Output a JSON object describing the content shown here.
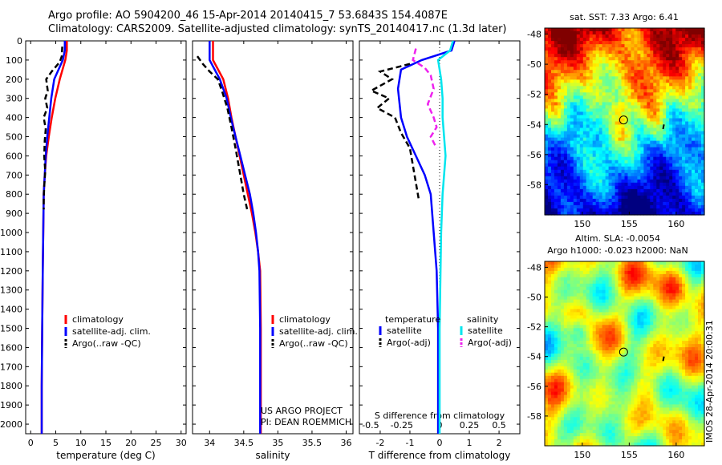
{
  "header": {
    "line1": "Argo profile: AO 5904200_46 15-Apr-2014 20140415_7 53.6843S 154.4087E",
    "line2": "Climatology: CARS2009. Satellite-adjusted climatology: synTS_20140417.nc (1.3d later)"
  },
  "colors": {
    "climatology": "#ff0000",
    "satellite": "#0000ff",
    "argo": "#000000",
    "sat_s": "#00e5ee",
    "argo_s": "#ee22ee"
  },
  "chart_data": [
    {
      "type": "line",
      "xlabel": "temperature (deg C)",
      "ylabel": "",
      "xlim": [
        -1,
        31
      ],
      "ylim": [
        2050,
        0
      ],
      "xticks": [
        0,
        5,
        10,
        15,
        20,
        25,
        30
      ],
      "yticks": [
        0,
        100,
        200,
        300,
        400,
        500,
        600,
        700,
        800,
        900,
        1000,
        1100,
        1200,
        1300,
        1400,
        1500,
        1600,
        1700,
        1800,
        1900,
        2000
      ],
      "legend": [
        "climatology",
        "satellite-adj. clim.",
        "Argo(..raw -QC)"
      ],
      "series": [
        {
          "name": "climatology",
          "color": "climatology",
          "dash": "",
          "x": [
            7.2,
            7.2,
            6.9,
            5.8,
            4.9,
            4.2,
            3.6,
            3.1,
            2.8,
            2.6,
            2.5,
            2.4,
            2.3,
            2.2,
            2.2
          ],
          "y": [
            0,
            50,
            100,
            200,
            300,
            400,
            500,
            600,
            700,
            800,
            1000,
            1200,
            1500,
            1800,
            2050
          ]
        },
        {
          "name": "satellite-adj. clim.",
          "color": "satellite",
          "dash": "",
          "x": [
            6.8,
            6.8,
            6.4,
            4.7,
            4.1,
            3.7,
            3.3,
            3.0,
            2.8,
            2.6,
            2.5,
            2.4,
            2.3,
            2.2,
            2.2
          ],
          "y": [
            0,
            50,
            100,
            200,
            300,
            400,
            500,
            600,
            700,
            800,
            1000,
            1200,
            1500,
            1800,
            2050
          ]
        },
        {
          "name": "Argo(..raw -QC)",
          "color": "argo",
          "dash": "7,4",
          "x": [
            6.3,
            6.2,
            5.8,
            4.2,
            3.1,
            3.4,
            2.9,
            3.3,
            2.6,
            3.0,
            2.8,
            2.7,
            2.9,
            2.7,
            2.6,
            2.6
          ],
          "y": [
            30,
            80,
            110,
            160,
            200,
            260,
            300,
            350,
            400,
            460,
            520,
            600,
            680,
            760,
            830,
            880
          ]
        }
      ]
    },
    {
      "type": "line",
      "xlabel": "salinity",
      "ylabel": "",
      "xlim": [
        33.75,
        36.1
      ],
      "ylim": [
        2050,
        0
      ],
      "xticks": [
        34,
        34.5,
        35,
        35.5,
        36
      ],
      "legend": [
        "climatology",
        "satellite-adj. clim.",
        "Argo(..raw -QC)"
      ],
      "series": [
        {
          "name": "climatology",
          "color": "climatology",
          "dash": "",
          "x": [
            34.05,
            34.05,
            34.05,
            34.2,
            34.27,
            34.32,
            34.38,
            34.44,
            34.5,
            34.56,
            34.62,
            34.67,
            34.71,
            34.74,
            34.75,
            34.75
          ],
          "y": [
            0,
            50,
            100,
            200,
            300,
            400,
            500,
            600,
            700,
            800,
            900,
            1000,
            1100,
            1200,
            1500,
            2050
          ]
        },
        {
          "name": "satellite-adj. clim.",
          "color": "satellite",
          "dash": "",
          "x": [
            34.0,
            34.0,
            34.0,
            34.15,
            34.25,
            34.31,
            34.38,
            34.45,
            34.52,
            34.59,
            34.64,
            34.68,
            34.71,
            34.73,
            34.74,
            34.74
          ],
          "y": [
            0,
            50,
            100,
            200,
            300,
            400,
            500,
            600,
            700,
            800,
            900,
            1000,
            1100,
            1200,
            1500,
            2050
          ]
        },
        {
          "name": "Argo(..raw -QC)",
          "color": "argo",
          "dash": "7,4",
          "x": [
            33.82,
            33.9,
            34.0,
            34.12,
            34.18,
            34.26,
            34.32,
            34.38,
            34.45,
            34.5,
            34.55
          ],
          "y": [
            80,
            120,
            160,
            200,
            260,
            350,
            450,
            560,
            700,
            800,
            880
          ]
        }
      ],
      "annotations": [
        "US ARGO PROJECT",
        "PI: DEAN ROEMMICH"
      ]
    },
    {
      "type": "line",
      "xlabel": "T difference from climatology",
      "xlabel2": "S difference from climatology",
      "xlim": [
        -2.7,
        2.7
      ],
      "ylim": [
        2050,
        0
      ],
      "xticks": [
        -2,
        -1,
        0,
        1,
        2
      ],
      "xticks2": [
        "-0.5",
        "-0.25",
        "0",
        "0.25",
        "0.5"
      ],
      "legend_t": {
        "title": "temperature",
        "items": [
          "satellite",
          "Argo(-adj)"
        ]
      },
      "legend_s": {
        "title": "salinity",
        "items": [
          "satellite",
          "Argo(-adj)"
        ]
      },
      "series": [
        {
          "name": "satellite",
          "color": "satellite",
          "dash": "",
          "x": [
            0.5,
            0.4,
            -0.6,
            -1.3,
            -1.4,
            -1.3,
            -1.1,
            -0.8,
            -0.5,
            -0.3,
            -0.2,
            -0.1,
            -0.05,
            -0.05
          ],
          "y": [
            0,
            50,
            100,
            150,
            250,
            400,
            500,
            600,
            700,
            800,
            1000,
            1200,
            1500,
            2050
          ]
        },
        {
          "name": "Argo(-adj)",
          "color": "argo",
          "dash": "7,4",
          "x": [
            -1.0,
            -2.0,
            -1.6,
            -2.3,
            -1.7,
            -2.1,
            -1.5,
            -1.3,
            -1.0,
            -0.7
          ],
          "y": [
            120,
            160,
            200,
            260,
            300,
            350,
            400,
            480,
            560,
            830
          ]
        },
        {
          "name": "satellite",
          "color": "sat_s",
          "dash": "",
          "x": [
            0.45,
            0.35,
            -0.05,
            0.05,
            0.1,
            0.1,
            0.2,
            0.1,
            0.05,
            0.0,
            0.0
          ],
          "y": [
            0,
            50,
            100,
            200,
            300,
            400,
            600,
            800,
            1000,
            1500,
            2050
          ]
        },
        {
          "name": "Argo(-adj)",
          "color": "argo_s",
          "dash": "7,4",
          "x": [
            -0.8,
            -0.9,
            -0.5,
            -0.3,
            -0.2,
            -0.4,
            -0.2,
            -0.1,
            -0.3,
            -0.1
          ],
          "y": [
            40,
            100,
            140,
            180,
            250,
            330,
            400,
            450,
            500,
            560
          ]
        }
      ]
    },
    {
      "type": "heatmap",
      "title": "sat. SST: 7.33 Argo: 6.41",
      "xticks": [
        "150",
        "155",
        "160"
      ],
      "yticks": [
        "-48",
        "-50",
        "-52",
        "-54",
        "-56",
        "-58"
      ],
      "xlim": [
        146,
        163
      ],
      "ylim": [
        -60,
        -47.6
      ],
      "marker": {
        "lon": 154.4,
        "lat": -53.7
      }
    },
    {
      "type": "heatmap",
      "title": "Altim. SLA: -0.0054",
      "subtitle": "Argo h1000: -0.023 h2000: NaN",
      "xticks": [
        "150",
        "155",
        "160"
      ],
      "yticks": [
        "-48",
        "-50",
        "-52",
        "-54",
        "-56",
        "-58"
      ],
      "xlim": [
        146,
        163
      ],
      "ylim": [
        -60,
        -47.6
      ],
      "marker": {
        "lon": 154.4,
        "lat": -53.7
      },
      "sidebar_text": "IMOS 28-Apr-2014 20:00:31"
    }
  ]
}
